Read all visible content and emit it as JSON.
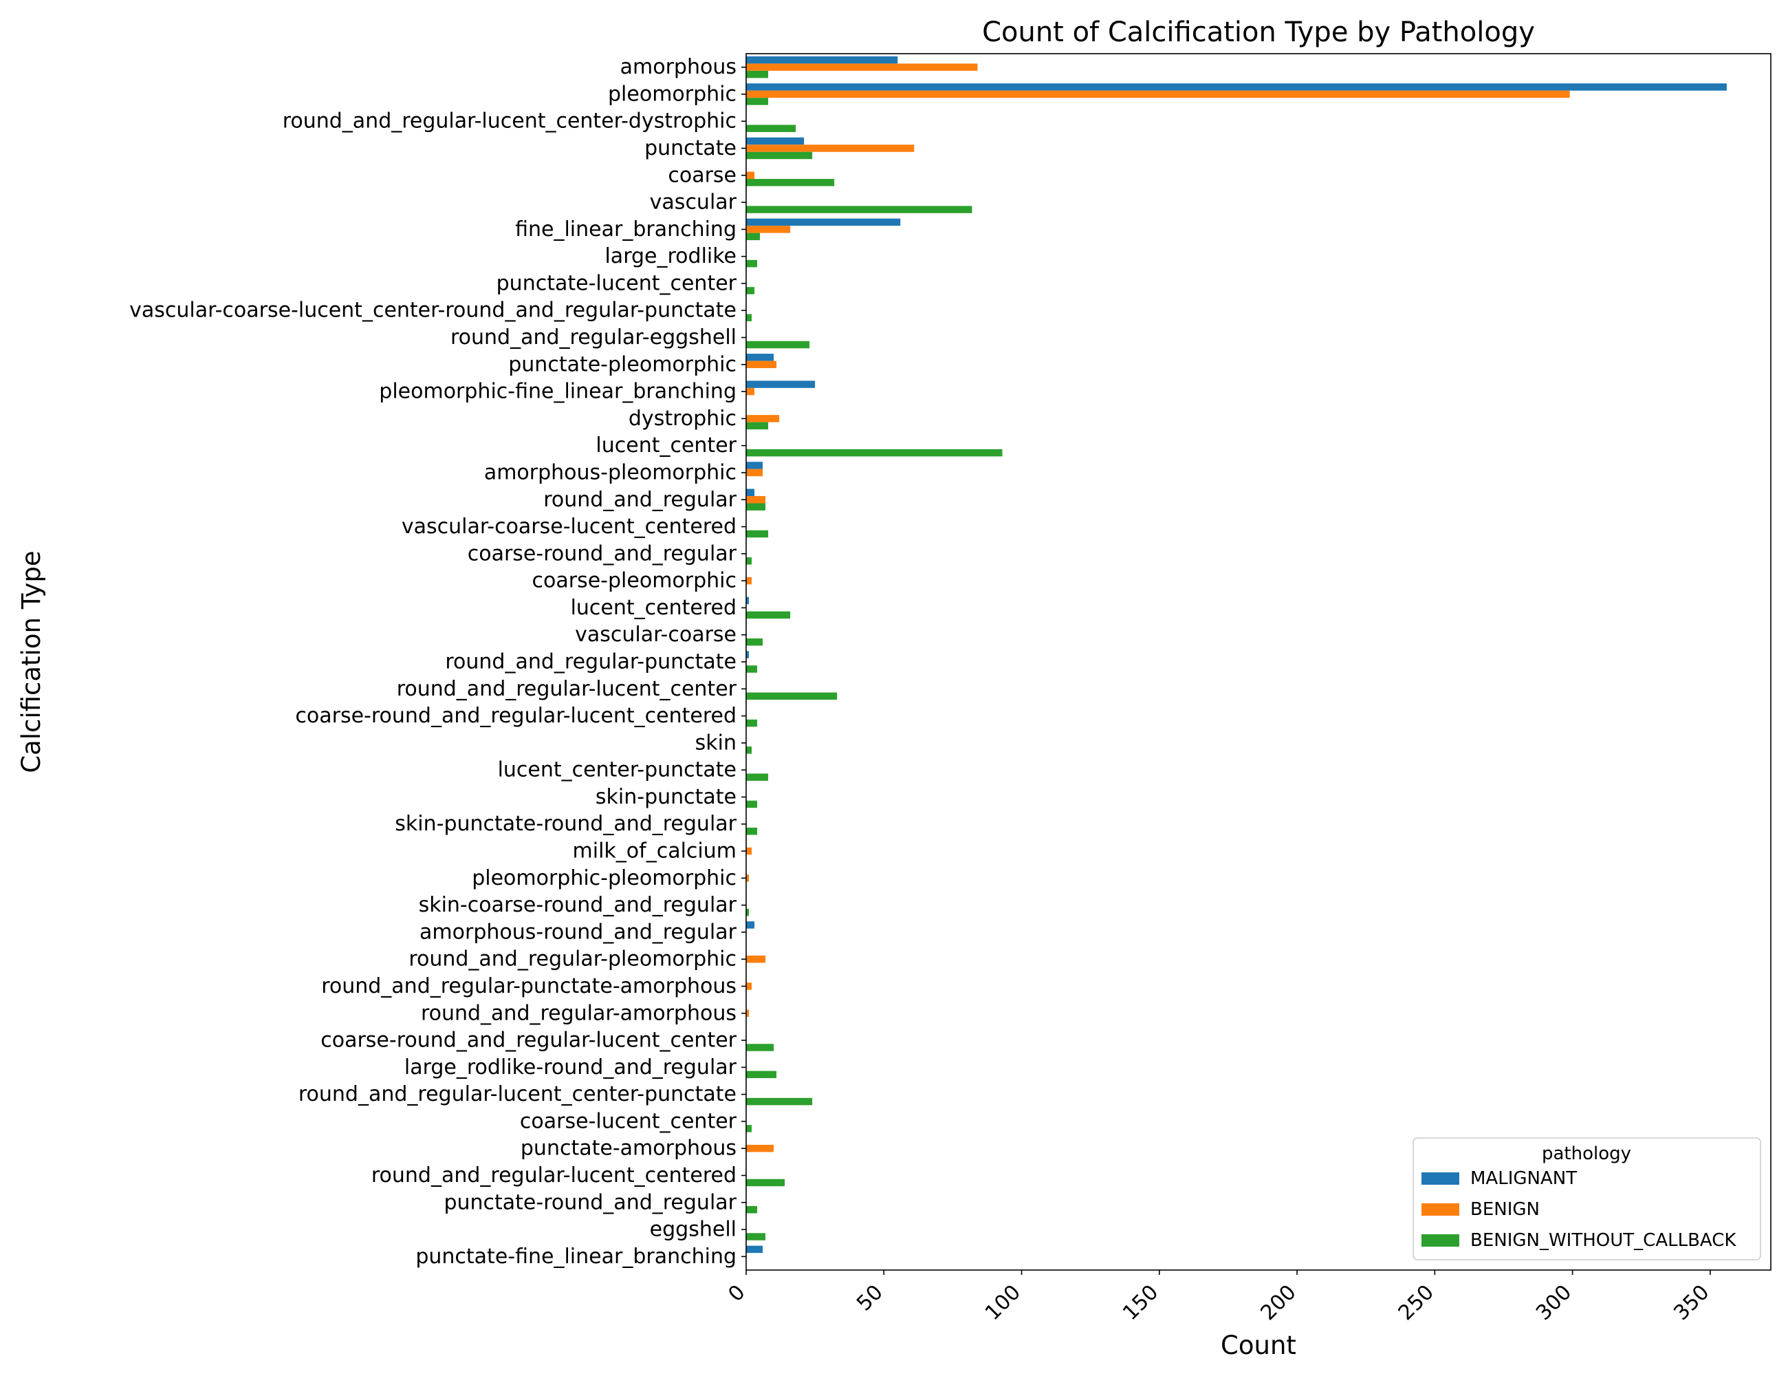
{
  "chart_data": {
    "type": "bar",
    "orientation": "horizontal",
    "title": "Count of Calcification Type by Pathology",
    "xlabel": "Count",
    "ylabel": "Calcification Type",
    "xlim": [
      0,
      372
    ],
    "xticks": [
      0,
      50,
      100,
      150,
      200,
      250,
      300,
      350
    ],
    "grid": false,
    "legend": {
      "title": "pathology",
      "position": "bottom-right"
    },
    "categories": [
      "amorphous",
      "pleomorphic",
      "round_and_regular-lucent_center-dystrophic",
      "punctate",
      "coarse",
      "vascular",
      "fine_linear_branching",
      "large_rodlike",
      "punctate-lucent_center",
      "vascular-coarse-lucent_center-round_and_regular-punctate",
      "round_and_regular-eggshell",
      "punctate-pleomorphic",
      "pleomorphic-fine_linear_branching",
      "dystrophic",
      "lucent_center",
      "amorphous-pleomorphic",
      "round_and_regular",
      "vascular-coarse-lucent_centered",
      "coarse-round_and_regular",
      "coarse-pleomorphic",
      "lucent_centered",
      "vascular-coarse",
      "round_and_regular-punctate",
      "round_and_regular-lucent_center",
      "coarse-round_and_regular-lucent_centered",
      "skin",
      "lucent_center-punctate",
      "skin-punctate",
      "skin-punctate-round_and_regular",
      "milk_of_calcium",
      "pleomorphic-pleomorphic",
      "skin-coarse-round_and_regular",
      "amorphous-round_and_regular",
      "round_and_regular-pleomorphic",
      "round_and_regular-punctate-amorphous",
      "round_and_regular-amorphous",
      "coarse-round_and_regular-lucent_center",
      "large_rodlike-round_and_regular",
      "round_and_regular-lucent_center-punctate",
      "coarse-lucent_center",
      "punctate-amorphous",
      "round_and_regular-lucent_centered",
      "punctate-round_and_regular",
      "eggshell",
      "punctate-fine_linear_branching"
    ],
    "series": [
      {
        "name": "MALIGNANT",
        "color": "#1f77b4",
        "values": [
          55,
          356,
          0,
          21,
          0,
          0,
          56,
          0,
          0,
          0,
          0,
          10,
          25,
          0,
          0,
          6,
          3,
          0,
          0,
          0,
          1,
          0,
          1,
          0,
          0,
          0,
          0,
          0,
          0,
          0,
          0,
          0,
          3,
          0,
          0,
          0,
          0,
          0,
          0,
          0,
          0,
          0,
          0,
          0,
          6
        ]
      },
      {
        "name": "BENIGN",
        "color": "#ff7f0e",
        "values": [
          84,
          299,
          0,
          61,
          3,
          0,
          16,
          0,
          0,
          0,
          0,
          11,
          3,
          12,
          0,
          6,
          7,
          0,
          0,
          2,
          0,
          0,
          0,
          0,
          0,
          0,
          0,
          0,
          0,
          2,
          1,
          0,
          0,
          7,
          2,
          1,
          0,
          0,
          0,
          0,
          10,
          0,
          0,
          0,
          0
        ]
      },
      {
        "name": "BENIGN_WITHOUT_CALLBACK",
        "color": "#2ca02c",
        "values": [
          8,
          8,
          18,
          24,
          32,
          82,
          5,
          4,
          3,
          2,
          23,
          0,
          0,
          8,
          93,
          0,
          7,
          8,
          2,
          0,
          16,
          6,
          4,
          33,
          4,
          2,
          8,
          4,
          4,
          0,
          0,
          1,
          0,
          0,
          0,
          0,
          10,
          11,
          24,
          2,
          0,
          14,
          4,
          7,
          0
        ]
      }
    ]
  }
}
